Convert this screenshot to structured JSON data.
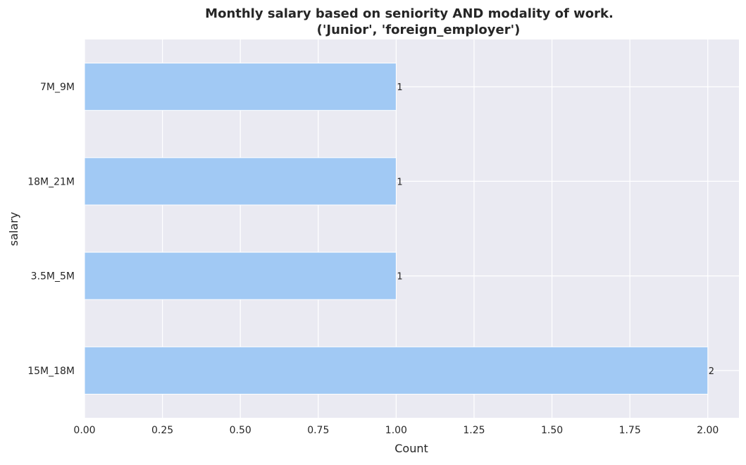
{
  "chart_data": {
    "type": "bar",
    "orientation": "horizontal",
    "title": "Monthly salary based on seniority AND modality of work.",
    "subtitle": "('Junior', 'foreign_employer')",
    "xlabel": "Count",
    "ylabel": "salary",
    "categories": [
      "7M_9M",
      "18M_21M",
      "3.5M_5M",
      "15M_18M"
    ],
    "values": [
      1,
      1,
      1,
      2
    ],
    "data_labels": [
      "1",
      "1",
      "1",
      "2"
    ],
    "xlim": [
      0,
      2.1
    ],
    "xticks": [
      0,
      0.25,
      0.5,
      0.75,
      1.0,
      1.25,
      1.5,
      1.75,
      2.0
    ],
    "xtick_labels": [
      "0.00",
      "0.25",
      "0.50",
      "0.75",
      "1.00",
      "1.25",
      "1.50",
      "1.75",
      "2.00"
    ],
    "grid": true,
    "colors": {
      "bar": "#a1c9f4",
      "plot_background": "#eaeaf2",
      "grid": "#ffffff",
      "text": "#262626"
    }
  }
}
